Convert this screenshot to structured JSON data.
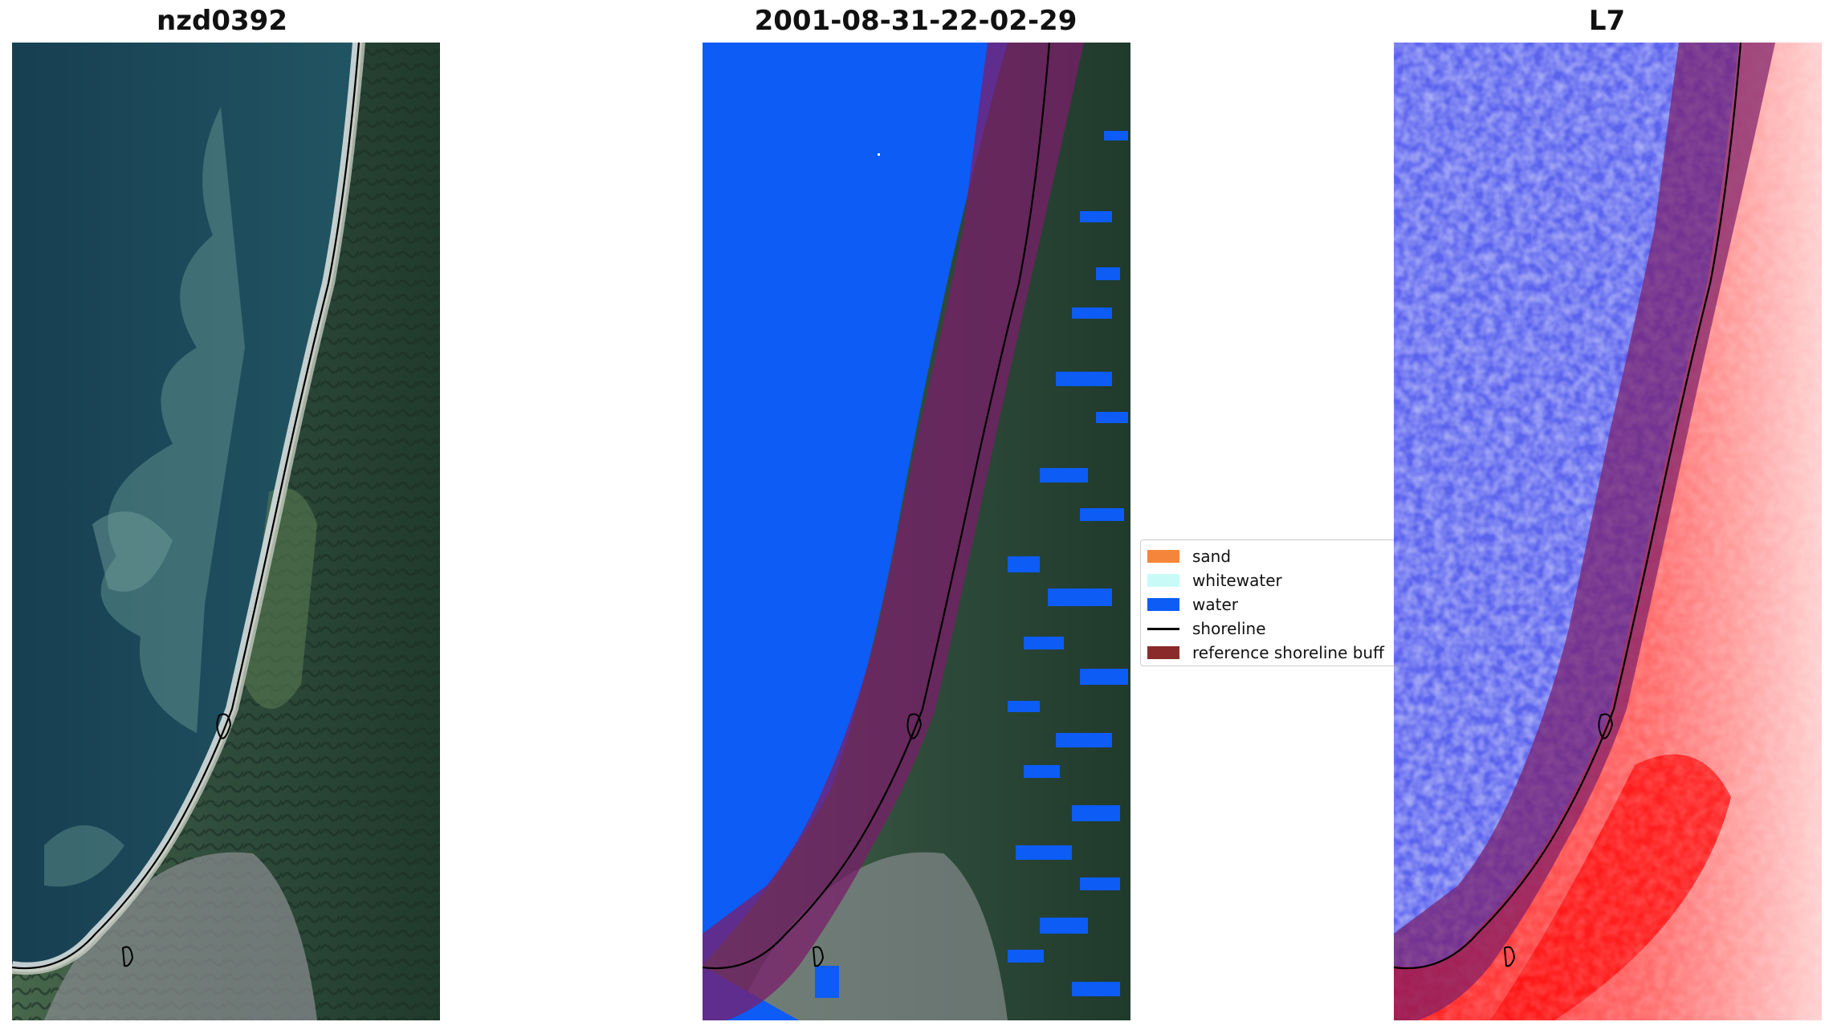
{
  "panels": [
    {
      "title": "nzd0392"
    },
    {
      "title": "2001-08-31-22-02-29"
    },
    {
      "title": "L7"
    }
  ],
  "legend": {
    "items": [
      {
        "label": "sand",
        "color": "#f4863b",
        "kind": "patch"
      },
      {
        "label": "whitewater",
        "color": "#c8fbf7",
        "kind": "patch"
      },
      {
        "label": "water",
        "color": "#0c5cf5",
        "kind": "patch"
      },
      {
        "label": "shoreline",
        "color": "#000000",
        "kind": "line"
      },
      {
        "label": "reference shoreline buff",
        "color": "#8b2a2a",
        "kind": "patch"
      }
    ]
  },
  "colors": {
    "sea_dark": "#1d4a5c",
    "sea_turbid": "#5f8f8c",
    "land_forest": "#2a4535",
    "land_field": "#4a6a4a",
    "urban": "#8a8e90",
    "beach": "#c9cfc6",
    "surf": "#e8eef0",
    "water_class": "#0c5cf5",
    "buffer": "#7a1e6a",
    "index_water": "#4a52e8",
    "index_land": "#ff2a2a"
  }
}
